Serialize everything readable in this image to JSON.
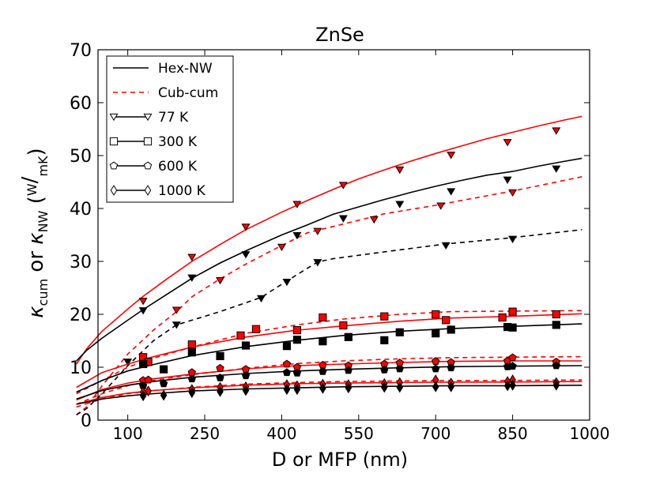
{
  "chart_data": {
    "type": "line",
    "title": "ZnSe",
    "xlabel": "D or MFP (nm)",
    "ylabel": {
      "base": "κ",
      "sub1": "cum",
      "or": " or ",
      "sub2": "NW",
      "unit_num": "W",
      "unit_den": "mK"
    },
    "xlim": [
      0,
      1000
    ],
    "ylim": [
      0,
      70
    ],
    "xticks": [
      100,
      250,
      400,
      550,
      700,
      850,
      1000
    ],
    "yticks": [
      0,
      10,
      20,
      30,
      40,
      50,
      60,
      70
    ],
    "grid": false,
    "legend_position": "top-left",
    "legend": [
      {
        "label": "Hex-NW",
        "line": "solid",
        "marker": "none"
      },
      {
        "label": "Cub-cum",
        "line": "dashed",
        "color": "#ff0000",
        "marker": "none"
      },
      {
        "label": "77 K",
        "line": "solid",
        "marker": "triangle-down"
      },
      {
        "label": "300 K",
        "line": "solid",
        "marker": "square"
      },
      {
        "label": "600 K",
        "line": "solid",
        "marker": "pentagon"
      },
      {
        "label": "1000 K",
        "line": "solid",
        "marker": "diamond"
      }
    ],
    "colors": {
      "hex": "#ff0000",
      "cub": "#000000"
    },
    "series": [
      {
        "temperature": "77 K",
        "marker": "triangle-down",
        "hex_nw_fit": {
          "x": [
            0,
            20,
            50,
            100,
            130,
            175,
            225,
            280,
            330,
            400,
            450,
            500,
            550,
            600,
            650,
            700,
            750,
            800,
            850,
            900,
            950,
            985
          ],
          "y": [
            10.6,
            13.5,
            16.8,
            21.0,
            23.4,
            26.6,
            30.0,
            33.2,
            36.0,
            39.3,
            41.5,
            43.6,
            45.6,
            47.3,
            48.9,
            50.4,
            51.8,
            53.2,
            54.4,
            55.6,
            56.7,
            57.4
          ]
        },
        "hex_nw_points": {
          "x": [
            130,
            225,
            330,
            430,
            520,
            630,
            730,
            840,
            935
          ],
          "y": [
            22.5,
            30.8,
            36.5,
            40.8,
            44.4,
            47.3,
            50.1,
            52.5,
            54.7
          ]
        },
        "cub_cum_curve": {
          "x": [
            0,
            20,
            50,
            100,
            150,
            195,
            225,
            280,
            330,
            400,
            450,
            500,
            560,
            600,
            700,
            750,
            850,
            985
          ],
          "y": [
            1.0,
            2.5,
            6.5,
            12.5,
            17.0,
            20.5,
            23.3,
            26.7,
            29.5,
            33.0,
            35.4,
            36.6,
            38.0,
            39.0,
            40.6,
            41.5,
            43.3,
            46.0
          ]
        },
        "cub_cum_points": {
          "x": [
            195,
            280,
            400,
            470,
            580,
            710,
            850
          ],
          "y": [
            20.8,
            26.4,
            32.7,
            35.7,
            37.9,
            40.5,
            43.0
          ]
        },
        "hex_nw_black_fit": {
          "x": [
            0,
            20,
            50,
            100,
            130,
            175,
            225,
            280,
            330,
            400,
            450,
            500,
            550,
            600,
            650,
            700,
            750,
            800,
            850,
            900,
            950,
            985
          ],
          "y": [
            11.2,
            13.2,
            15.5,
            18.9,
            20.9,
            23.7,
            26.8,
            29.7,
            32.0,
            35.0,
            36.9,
            38.9,
            40.3,
            41.7,
            43.0,
            44.2,
            45.3,
            46.3,
            47.0,
            48.0,
            48.9,
            49.5
          ]
        },
        "hex_nw_black_points": {
          "x": [
            130,
            225,
            330,
            430,
            520,
            630,
            730,
            840,
            935
          ],
          "y": [
            20.7,
            26.9,
            31.3,
            34.9,
            38.1,
            40.8,
            43.2,
            45.4,
            47.5
          ]
        },
        "cub_cum_black_curve": {
          "x": [
            0,
            20,
            50,
            100,
            150,
            195,
            280,
            360,
            410,
            470,
            500,
            600,
            720,
            850,
            985
          ],
          "y": [
            1.0,
            2.2,
            5.0,
            10.3,
            15.0,
            18.0,
            20.5,
            23.2,
            26.3,
            29.9,
            30.5,
            31.8,
            33.3,
            34.5,
            36.0
          ]
        },
        "cub_cum_black_points": {
          "x": [
            100,
            195,
            360,
            410,
            470,
            720,
            850
          ],
          "y": [
            11.0,
            18.0,
            23.0,
            26.1,
            29.8,
            33.0,
            34.2
          ]
        }
      },
      {
        "temperature": "300 K",
        "marker": "square",
        "hex_nw_fit": {
          "x": [
            0,
            50,
            100,
            150,
            225,
            330,
            430,
            520,
            630,
            730,
            840,
            985
          ],
          "y": [
            6.2,
            9.0,
            10.6,
            12.0,
            13.8,
            15.7,
            17.0,
            17.8,
            18.7,
            19.3,
            19.6,
            20.1
          ]
        },
        "hex_nw_points": {
          "x": [
            130,
            140,
            225,
            320,
            350,
            430,
            480,
            520,
            600,
            700,
            720,
            830,
            850,
            935
          ],
          "y": [
            11.9,
            11.0,
            14.3,
            16.0,
            17.2,
            17.0,
            19.4,
            17.9,
            19.6,
            20.0,
            18.9,
            19.4,
            20.5,
            20.0
          ]
        },
        "cub_cum_curve": {
          "x": [
            0,
            50,
            100,
            150,
            225,
            330,
            430,
            520,
            630,
            730,
            840,
            985
          ],
          "y": [
            5.0,
            7.5,
            10.0,
            11.7,
            13.8,
            16.4,
            18.0,
            19.1,
            20.0,
            20.5,
            20.6,
            20.7
          ]
        },
        "hex_nw_black_fit": {
          "x": [
            0,
            50,
            100,
            150,
            225,
            330,
            430,
            520,
            630,
            730,
            840,
            985
          ],
          "y": [
            5.3,
            7.5,
            9.3,
            10.5,
            12.2,
            13.9,
            15.1,
            16.0,
            16.8,
            17.3,
            17.7,
            18.2
          ]
        },
        "hex_nw_black_points": {
          "x": [
            130,
            170,
            225,
            280,
            330,
            410,
            430,
            480,
            530,
            600,
            630,
            700,
            730,
            840,
            850,
            935
          ],
          "y": [
            10.6,
            9.6,
            12.8,
            12.1,
            14.1,
            14.0,
            15.2,
            14.9,
            15.7,
            15.1,
            16.6,
            16.4,
            17.1,
            17.6,
            17.5,
            18.0
          ]
        }
      },
      {
        "temperature": "600 K",
        "marker": "pentagon",
        "hex_nw_fit": {
          "x": [
            0,
            50,
            100,
            150,
            225,
            330,
            430,
            520,
            630,
            730,
            840,
            985
          ],
          "y": [
            3.8,
            5.8,
            7.0,
            7.8,
            8.7,
            9.7,
            10.3,
            10.6,
            10.9,
            11.1,
            11.2,
            11.2
          ]
        },
        "hex_nw_points": {
          "x": [
            130,
            140,
            225,
            280,
            330,
            410,
            430,
            480,
            530,
            600,
            630,
            700,
            730,
            840,
            850,
            935
          ],
          "y": [
            7.5,
            7.6,
            9.0,
            9.8,
            9.6,
            10.6,
            10.0,
            10.4,
            10.3,
            10.6,
            10.8,
            11.1,
            10.9,
            11.2,
            11.8,
            11.0
          ]
        },
        "cub_cum_curve": {
          "x": [
            0,
            50,
            100,
            150,
            225,
            330,
            430,
            520,
            630,
            730,
            840,
            985
          ],
          "y": [
            3.0,
            5.0,
            6.5,
            7.5,
            8.6,
            9.8,
            10.7,
            11.2,
            11.6,
            11.8,
            11.9,
            12.0
          ]
        },
        "hex_nw_black_fit": {
          "x": [
            0,
            50,
            100,
            150,
            225,
            330,
            430,
            520,
            630,
            730,
            840,
            985
          ],
          "y": [
            4.0,
            5.6,
            6.6,
            7.3,
            8.1,
            8.8,
            9.3,
            9.6,
            9.9,
            10.1,
            10.2,
            10.3
          ]
        },
        "hex_nw_black_points": {
          "x": [
            130,
            170,
            225,
            280,
            330,
            410,
            430,
            480,
            530,
            600,
            630,
            700,
            730,
            840,
            850,
            935
          ],
          "y": [
            6.5,
            6.9,
            7.8,
            8.0,
            8.4,
            9.0,
            8.9,
            9.2,
            9.4,
            9.5,
            9.7,
            9.7,
            9.9,
            10.1,
            10.2,
            10.3
          ]
        }
      },
      {
        "temperature": "1000 K",
        "marker": "diamond",
        "hex_nw_fit": {
          "x": [
            0,
            50,
            100,
            150,
            225,
            330,
            430,
            520,
            630,
            730,
            840,
            985
          ],
          "y": [
            3.0,
            4.3,
            5.1,
            5.6,
            6.1,
            6.6,
            6.9,
            7.0,
            7.1,
            7.2,
            7.2,
            7.3
          ]
        },
        "hex_nw_points": {
          "x": [
            130,
            140,
            225,
            280,
            330,
            410,
            430,
            480,
            530,
            600,
            630,
            700,
            730,
            840,
            850,
            935
          ],
          "y": [
            5.3,
            5.5,
            5.8,
            6.2,
            6.3,
            6.7,
            6.5,
            6.8,
            6.7,
            6.9,
            7.1,
            7.6,
            7.0,
            7.3,
            7.6,
            7.1
          ]
        },
        "cub_cum_curve": {
          "x": [
            0,
            50,
            100,
            150,
            225,
            330,
            430,
            520,
            630,
            730,
            840,
            985
          ],
          "y": [
            2.5,
            4.0,
            5.0,
            5.6,
            6.2,
            6.8,
            7.1,
            7.3,
            7.4,
            7.5,
            7.5,
            7.6
          ]
        },
        "hex_nw_black_fit": {
          "x": [
            0,
            50,
            100,
            150,
            225,
            330,
            430,
            520,
            630,
            730,
            840,
            985
          ],
          "y": [
            3.0,
            4.0,
            4.6,
            5.0,
            5.5,
            5.9,
            6.1,
            6.3,
            6.4,
            6.5,
            6.5,
            6.6
          ]
        },
        "hex_nw_black_points": {
          "x": [
            130,
            170,
            225,
            280,
            330,
            410,
            430,
            480,
            530,
            600,
            630,
            700,
            730,
            840,
            850,
            935
          ],
          "y": [
            4.6,
            4.7,
            5.2,
            5.4,
            5.6,
            5.8,
            5.8,
            6.0,
            6.1,
            6.2,
            6.2,
            6.3,
            6.3,
            6.5,
            6.6,
            6.6
          ]
        }
      }
    ]
  }
}
